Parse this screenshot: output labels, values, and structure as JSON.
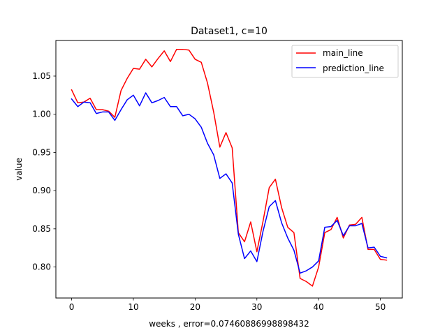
{
  "chart_data": {
    "type": "line",
    "title": "Dataset1, c=10",
    "xlabel": "weeks , error=0.07460886998898432",
    "ylabel": "value",
    "xlim": [
      -2.55,
      53.55
    ],
    "ylim": [
      0.7594,
      1.0966
    ],
    "xticks": [
      0,
      10,
      20,
      30,
      40,
      50
    ],
    "yticks": [
      0.8,
      0.85,
      0.9,
      0.95,
      1.0,
      1.05
    ],
    "ytick_labels": [
      "0.80",
      "0.85",
      "0.90",
      "0.95",
      "1.00",
      "1.05"
    ],
    "grid": false,
    "legend_position": "top-right",
    "x": [
      0,
      1,
      2,
      3,
      4,
      5,
      6,
      7,
      8,
      9,
      10,
      11,
      12,
      13,
      14,
      15,
      16,
      17,
      18,
      19,
      20,
      21,
      22,
      23,
      24,
      25,
      26,
      27,
      28,
      29,
      30,
      31,
      32,
      33,
      34,
      35,
      36,
      37,
      38,
      39,
      40,
      41,
      42,
      43,
      44,
      45,
      46,
      47,
      48,
      49,
      50,
      51
    ],
    "series": [
      {
        "name": "main_line",
        "color": "#ff0000",
        "values": [
          1.032,
          1.015,
          1.016,
          1.021,
          1.006,
          1.006,
          1.004,
          0.996,
          1.031,
          1.047,
          1.06,
          1.059,
          1.072,
          1.062,
          1.073,
          1.083,
          1.069,
          1.085,
          1.085,
          1.084,
          1.072,
          1.068,
          1.041,
          1.003,
          0.957,
          0.976,
          0.956,
          0.845,
          0.833,
          0.859,
          0.82,
          0.86,
          0.904,
          0.915,
          0.878,
          0.852,
          0.845,
          0.785,
          0.781,
          0.775,
          0.8,
          0.845,
          0.849,
          0.865,
          0.838,
          0.855,
          0.856,
          0.865,
          0.823,
          0.823,
          0.81,
          0.809
        ]
      },
      {
        "name": "prediction_line",
        "color": "#0000ff",
        "values": [
          1.02,
          1.01,
          1.016,
          1.015,
          1.001,
          1.003,
          1.003,
          0.992,
          1.006,
          1.019,
          1.025,
          1.011,
          1.028,
          1.015,
          1.018,
          1.022,
          1.01,
          1.01,
          0.998,
          1.0,
          0.994,
          0.983,
          0.962,
          0.947,
          0.916,
          0.922,
          0.91,
          0.843,
          0.811,
          0.821,
          0.807,
          0.847,
          0.879,
          0.887,
          0.858,
          0.838,
          0.822,
          0.792,
          0.795,
          0.8,
          0.808,
          0.852,
          0.853,
          0.861,
          0.841,
          0.854,
          0.854,
          0.857,
          0.825,
          0.826,
          0.814,
          0.812
        ]
      }
    ]
  }
}
